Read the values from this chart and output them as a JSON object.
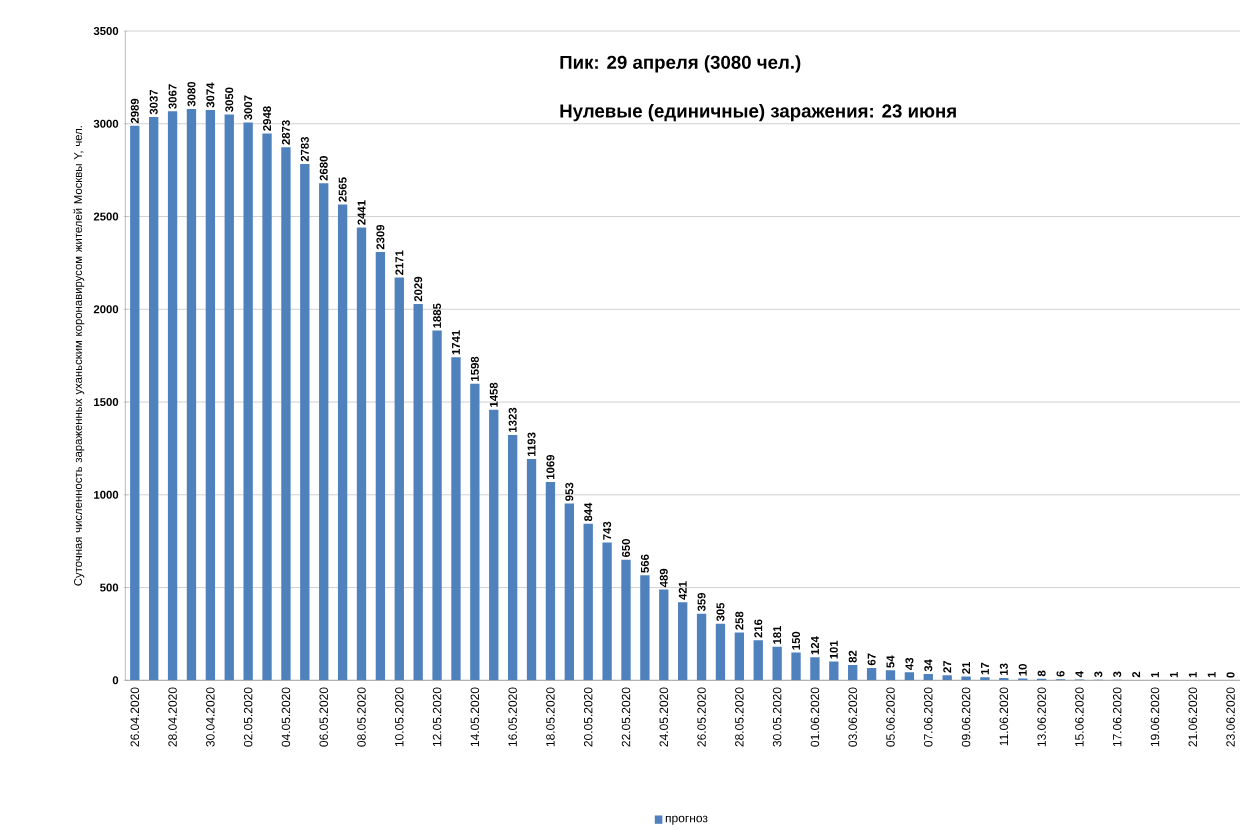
{
  "chart_data": {
    "type": "bar",
    "ylabel": "Суточная численность зараженных уханьским коронавирусом жителей Москвы Y, чел.",
    "annotations": [
      "Пик: 29 апреля (3080 чел.)",
      "Нулевые (единичные) заражения: 23 июня"
    ],
    "categories": [
      "26.04.2020",
      null,
      "28.04.2020",
      null,
      "30.04.2020",
      null,
      "02.05.2020",
      null,
      "04.05.2020",
      null,
      "06.05.2020",
      null,
      "08.05.2020",
      null,
      "10.05.2020",
      null,
      "12.05.2020",
      null,
      "14.05.2020",
      null,
      "16.05.2020",
      null,
      "18.05.2020",
      null,
      "20.05.2020",
      null,
      "22.05.2020",
      null,
      "24.05.2020",
      null,
      "26.05.2020",
      null,
      "28.05.2020",
      null,
      "30.05.2020",
      null,
      "01.06.2020",
      null,
      "03.06.2020",
      null,
      "05.06.2020",
      null,
      "07.06.2020",
      null,
      "09.06.2020",
      null,
      "11.06.2020",
      null,
      "13.06.2020",
      null,
      "15.06.2020",
      null,
      "17.06.2020",
      null,
      "19.06.2020",
      null,
      "21.06.2020",
      null,
      "23.06.2020"
    ],
    "series": [
      {
        "name": "прогноз",
        "color": "#4f81bd",
        "values": [
          2989,
          3037,
          3067,
          3080,
          3074,
          3050,
          3007,
          2948,
          2873,
          2783,
          2680,
          2565,
          2441,
          2309,
          2171,
          2029,
          1885,
          1741,
          1598,
          1458,
          1323,
          1193,
          1069,
          953,
          844,
          743,
          650,
          566,
          489,
          421,
          359,
          305,
          258,
          216,
          181,
          150,
          124,
          101,
          82,
          67,
          54,
          43,
          34,
          27,
          21,
          17,
          13,
          10,
          8,
          6,
          4,
          3,
          3,
          2,
          1,
          1,
          1,
          1,
          0
        ]
      }
    ],
    "ylim": [
      0,
      3500
    ],
    "yticks": [
      0,
      500,
      1000,
      1500,
      2000,
      2500,
      3000,
      3500
    ],
    "grid": "y",
    "legend": "bottom",
    "data_labels": true
  }
}
